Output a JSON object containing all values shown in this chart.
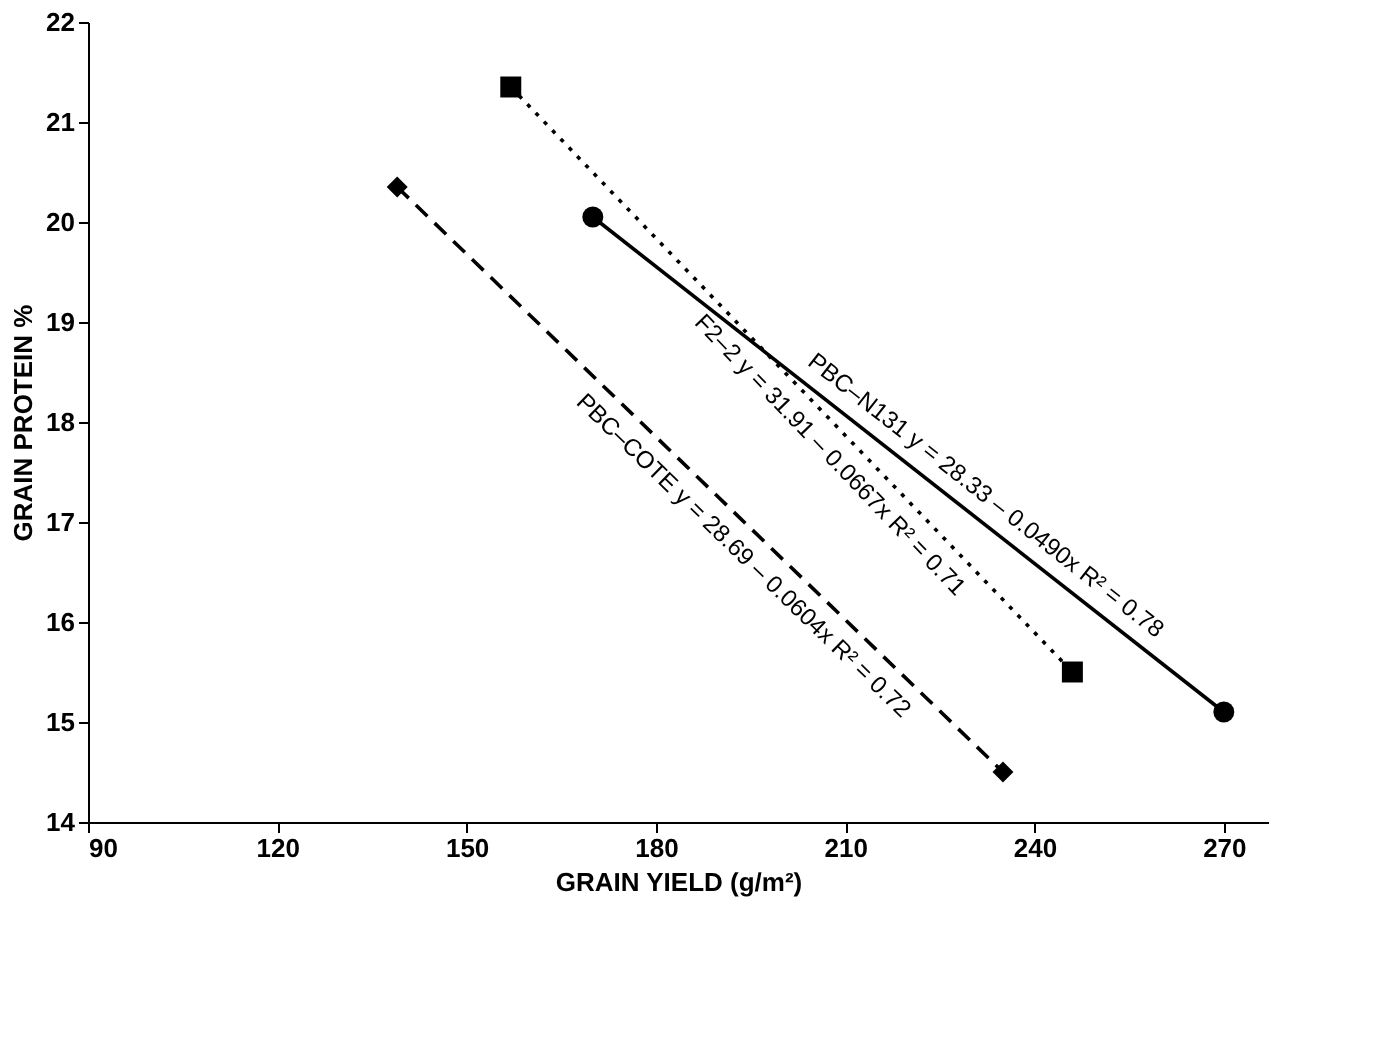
{
  "chart_data": {
    "type": "line",
    "xlabel": "GRAIN YIELD (g/m²)",
    "ylabel": "GRAIN PROTEIN %",
    "xlim": [
      90,
      277
    ],
    "xticks": [
      90,
      120,
      150,
      180,
      210,
      240,
      270
    ],
    "ylim": [
      14,
      22
    ],
    "yticks": [
      14,
      15,
      16,
      17,
      18,
      19,
      20,
      21,
      22
    ],
    "grid": false,
    "series": [
      {
        "color": "#000000",
        "x": [
          170,
          270
        ],
        "values": [
          20.05,
          15.1
        ],
        "marker": "circle",
        "line_style": "solid"
      },
      {
        "color": "#000000",
        "x": [
          157,
          246
        ],
        "values": [
          21.35,
          15.5
        ],
        "marker": "square",
        "line_style": "dotted"
      },
      {
        "color": "#000000",
        "x": [
          139,
          235
        ],
        "values": [
          20.35,
          14.5
        ],
        "marker": "diamond",
        "line_style": "dashed"
      }
    ],
    "annotations": [
      "PBC–N131   y = 28.33 – 0.0490x   R² = 0.78",
      "F2–2   y = 31.91 – 0.0667x   R² = 0.71",
      "PBC–COTE   y = 28.69 – 0.0604x   R² = 0.72"
    ]
  }
}
